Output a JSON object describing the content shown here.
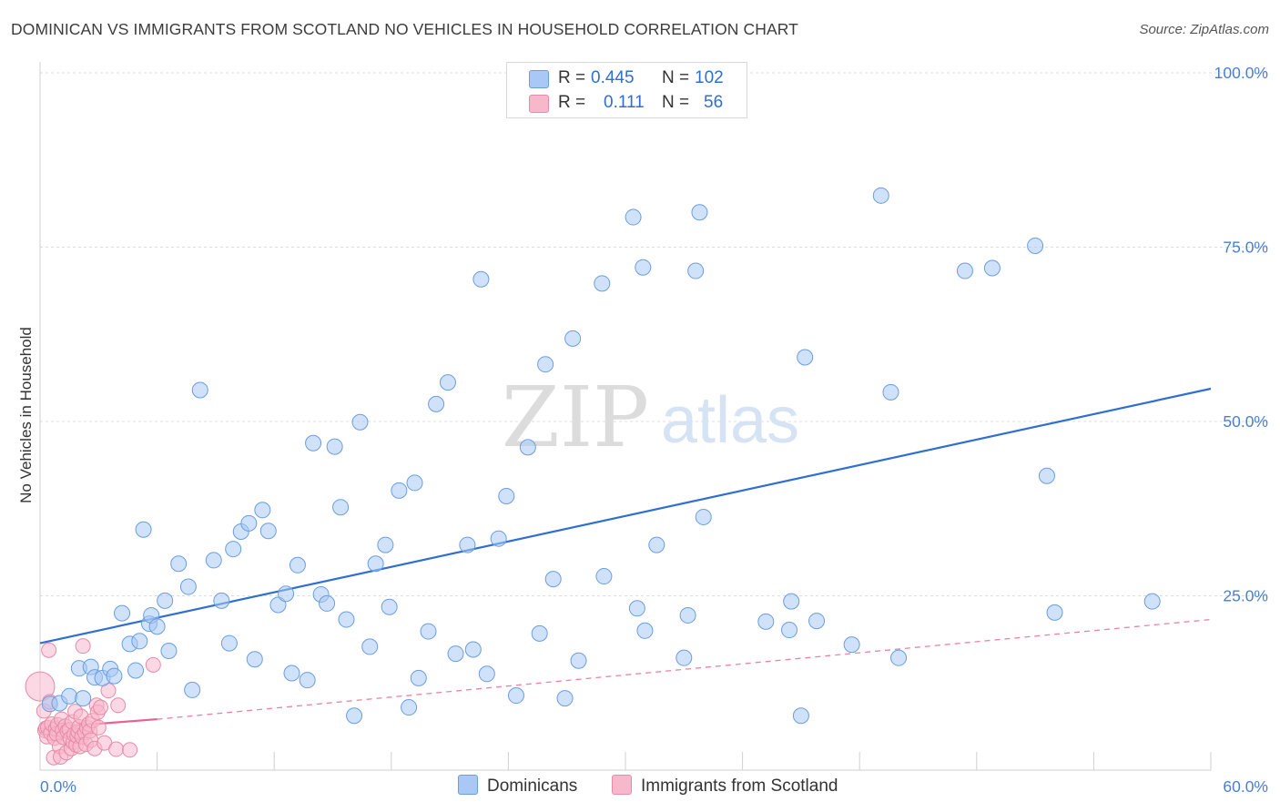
{
  "title": "DOMINICAN VS IMMIGRANTS FROM SCOTLAND NO VEHICLES IN HOUSEHOLD CORRELATION CHART",
  "source": "Source: ZipAtlas.com",
  "watermark": {
    "zip": "ZIP",
    "atlas": "atlas"
  },
  "legend_top": {
    "rows": [
      {
        "r_label": "R =",
        "r_value": "0.445",
        "n_label": "N =",
        "n_value": "102",
        "color": "#a9c8f5"
      },
      {
        "r_label": "R =",
        "r_value": "0.111",
        "n_label": "N =",
        "n_value": "56",
        "color": "#f7b8cc"
      }
    ]
  },
  "legend_bottom": [
    {
      "label": "Dominicans",
      "color": "#a9c8f5"
    },
    {
      "label": "Immigrants from Scotland",
      "color": "#f7b8cc"
    }
  ],
  "colors": {
    "blue_point_fill": "#a9c8f5",
    "blue_point_stroke": "#6a9ee0",
    "blue_line": "#2f6fd0",
    "pink_point_fill": "#f7b8cc",
    "pink_point_stroke": "#e88aa8",
    "pink_line": "#e8628e",
    "grid": "#dcdcdc",
    "tick_text": "#4a7fd0"
  },
  "chart_data": {
    "type": "scatter",
    "title": "DOMINICAN VS IMMIGRANTS FROM SCOTLAND NO VEHICLES IN HOUSEHOLD CORRELATION CHART",
    "xlabel": "",
    "ylabel": "No Vehicles in Household",
    "xlim": [
      0,
      60
    ],
    "ylim": [
      0,
      100
    ],
    "x_tick_labels": [
      "0.0%",
      "60.0%"
    ],
    "y_tick_labels": [
      "100.0%",
      "75.0%",
      "50.0%",
      "25.0%"
    ],
    "y_ticks": [
      100,
      75,
      50,
      25
    ],
    "grid": true,
    "legend": "bottom",
    "series": [
      {
        "name": "Dominicans",
        "R": 0.445,
        "N": 102,
        "trend": {
          "x": [
            0,
            60
          ],
          "y": [
            18.2,
            54.7
          ],
          "style": "solid"
        },
        "points": [
          [
            0.5,
            9.5
          ],
          [
            1.0,
            9.6
          ],
          [
            1.5,
            10.6
          ],
          [
            2.2,
            10.3
          ],
          [
            2.0,
            14.6
          ],
          [
            2.6,
            14.8
          ],
          [
            2.8,
            13.3
          ],
          [
            3.2,
            13.2
          ],
          [
            3.6,
            14.5
          ],
          [
            3.8,
            13.5
          ],
          [
            4.2,
            22.5
          ],
          [
            4.6,
            18.1
          ],
          [
            4.9,
            14.3
          ],
          [
            5.1,
            18.5
          ],
          [
            5.3,
            34.5
          ],
          [
            5.6,
            21.0
          ],
          [
            5.7,
            22.2
          ],
          [
            6.0,
            20.6
          ],
          [
            6.4,
            24.3
          ],
          [
            6.6,
            17.1
          ],
          [
            7.1,
            29.6
          ],
          [
            7.6,
            26.3
          ],
          [
            7.8,
            11.5
          ],
          [
            8.2,
            54.5
          ],
          [
            8.9,
            30.1
          ],
          [
            9.3,
            24.3
          ],
          [
            9.7,
            18.2
          ],
          [
            9.9,
            31.7
          ],
          [
            10.3,
            34.2
          ],
          [
            10.7,
            35.4
          ],
          [
            11.0,
            15.9
          ],
          [
            11.4,
            37.3
          ],
          [
            11.7,
            34.3
          ],
          [
            12.2,
            23.7
          ],
          [
            12.6,
            25.3
          ],
          [
            12.9,
            13.9
          ],
          [
            13.2,
            29.4
          ],
          [
            13.7,
            12.9
          ],
          [
            14.0,
            46.9
          ],
          [
            14.4,
            25.2
          ],
          [
            14.7,
            23.9
          ],
          [
            15.1,
            46.4
          ],
          [
            15.4,
            37.7
          ],
          [
            15.7,
            21.6
          ],
          [
            16.1,
            7.8
          ],
          [
            16.4,
            49.9
          ],
          [
            16.9,
            17.7
          ],
          [
            17.2,
            29.6
          ],
          [
            17.7,
            32.3
          ],
          [
            17.9,
            23.4
          ],
          [
            18.4,
            40.1
          ],
          [
            18.9,
            9.0
          ],
          [
            19.2,
            41.2
          ],
          [
            19.4,
            13.2
          ],
          [
            19.9,
            19.9
          ],
          [
            20.3,
            52.5
          ],
          [
            20.9,
            55.6
          ],
          [
            21.3,
            16.7
          ],
          [
            21.9,
            32.3
          ],
          [
            22.2,
            17.3
          ],
          [
            22.6,
            70.4
          ],
          [
            22.9,
            13.8
          ],
          [
            23.5,
            33.2
          ],
          [
            23.9,
            39.3
          ],
          [
            24.4,
            10.7
          ],
          [
            25.0,
            46.3
          ],
          [
            25.6,
            19.6
          ],
          [
            25.9,
            58.2
          ],
          [
            26.3,
            27.4
          ],
          [
            26.9,
            10.3
          ],
          [
            27.3,
            61.9
          ],
          [
            27.6,
            15.7
          ],
          [
            28.8,
            69.8
          ],
          [
            28.9,
            27.8
          ],
          [
            30.4,
            79.3
          ],
          [
            30.6,
            23.2
          ],
          [
            30.9,
            72.1
          ],
          [
            31.0,
            20.0
          ],
          [
            31.6,
            32.3
          ],
          [
            33.0,
            16.1
          ],
          [
            33.2,
            22.2
          ],
          [
            33.6,
            71.6
          ],
          [
            33.8,
            80.0
          ],
          [
            34.0,
            36.3
          ],
          [
            37.2,
            21.3
          ],
          [
            38.4,
            20.1
          ],
          [
            38.5,
            24.2
          ],
          [
            39.0,
            7.8
          ],
          [
            39.2,
            59.2
          ],
          [
            39.8,
            21.4
          ],
          [
            41.6,
            18.0
          ],
          [
            43.1,
            82.4
          ],
          [
            43.6,
            54.2
          ],
          [
            44.0,
            16.1
          ],
          [
            47.4,
            71.6
          ],
          [
            48.8,
            72.0
          ],
          [
            51.0,
            75.2
          ],
          [
            51.6,
            42.2
          ],
          [
            52.0,
            22.6
          ],
          [
            57.0,
            24.2
          ]
        ]
      },
      {
        "name": "Immigrants from Scotland",
        "R": 0.111,
        "N": 56,
        "trend": {
          "x": [
            0,
            6
          ],
          "y": [
            6.0,
            7.3
          ],
          "dashed_extension": {
            "x": [
              6,
              60
            ],
            "y": [
              7.3,
              21.6
            ]
          },
          "style": "solid+dashed"
        },
        "points": [
          [
            0.0,
            12.0
          ],
          [
            0.2,
            8.5
          ],
          [
            0.25,
            5.7
          ],
          [
            0.3,
            6.0
          ],
          [
            0.35,
            4.8
          ],
          [
            0.4,
            6.1
          ],
          [
            0.45,
            17.2
          ],
          [
            0.5,
            9.8
          ],
          [
            0.55,
            5.3
          ],
          [
            0.6,
            6.6
          ],
          [
            0.7,
            1.8
          ],
          [
            0.75,
            4.6
          ],
          [
            0.8,
            5.9
          ],
          [
            0.85,
            5.2
          ],
          [
            0.9,
            6.5
          ],
          [
            1.0,
            3.4
          ],
          [
            1.05,
            1.9
          ],
          [
            1.1,
            7.3
          ],
          [
            1.15,
            5.7
          ],
          [
            1.2,
            4.7
          ],
          [
            1.3,
            6.3
          ],
          [
            1.35,
            2.5
          ],
          [
            1.4,
            5.6
          ],
          [
            1.5,
            5.8
          ],
          [
            1.55,
            4.5
          ],
          [
            1.6,
            3.1
          ],
          [
            1.65,
            6.9
          ],
          [
            1.7,
            4.0
          ],
          [
            1.75,
            5.1
          ],
          [
            1.8,
            8.4
          ],
          [
            1.85,
            3.6
          ],
          [
            1.9,
            4.9
          ],
          [
            1.95,
            5.5
          ],
          [
            2.0,
            6.2
          ],
          [
            2.05,
            3.4
          ],
          [
            2.1,
            7.7
          ],
          [
            2.15,
            4.8
          ],
          [
            2.2,
            17.8
          ],
          [
            2.3,
            5.4
          ],
          [
            2.35,
            3.7
          ],
          [
            2.4,
            6.1
          ],
          [
            2.5,
            6.6
          ],
          [
            2.55,
            5.6
          ],
          [
            2.6,
            4.3
          ],
          [
            2.7,
            7.1
          ],
          [
            2.8,
            3.1
          ],
          [
            2.9,
            9.3
          ],
          [
            2.95,
            8.3
          ],
          [
            3.0,
            6.1
          ],
          [
            3.1,
            9.0
          ],
          [
            3.3,
            3.9
          ],
          [
            3.5,
            11.4
          ],
          [
            3.9,
            3.0
          ],
          [
            4.0,
            9.3
          ],
          [
            4.6,
            2.9
          ],
          [
            5.8,
            15.1
          ]
        ]
      }
    ]
  }
}
